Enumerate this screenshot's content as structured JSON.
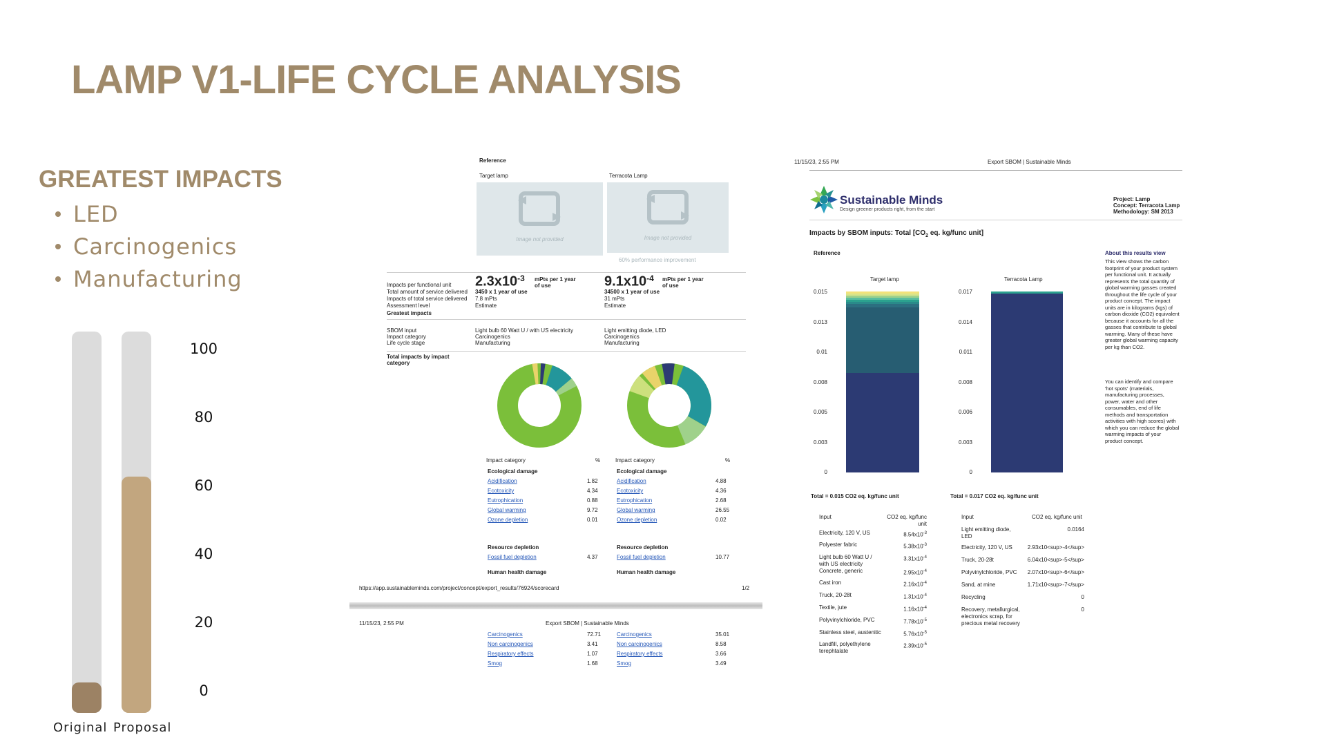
{
  "page": {
    "title": "LAMP  V1-LIFE CYCLE ANALYSIS",
    "greatest_impacts_title": "GREATEST IMPACTS",
    "impacts": [
      "LED",
      "Carcinogenics",
      "Manufacturing"
    ]
  },
  "bar_chart": {
    "type": "bar",
    "categories": [
      "Original",
      "Proposal"
    ],
    "values": [
      8,
      62
    ],
    "ylim": [
      0,
      100
    ],
    "yticks": [
      "100",
      "80",
      "60",
      "40",
      "20",
      "0"
    ],
    "colors": {
      "original": "#9c8264",
      "proposal": "#c2a67f",
      "track": "#dcdcdc"
    }
  },
  "scorecard": {
    "reference_label": "Reference",
    "col1": {
      "name": "Target lamp",
      "img_text": "Image not provided",
      "value_base": "2.3x10",
      "value_exp": "-3",
      "unit": "mPts per 1 year of use",
      "service": "3450 x 1 year of use",
      "total": "7.8 mPts",
      "level": "Estimate",
      "sbom": "Light bulb 60 Watt U / with US electricity",
      "category": "Carcinogenics",
      "stage": "Manufacturing"
    },
    "col2": {
      "name": "Terracota Lamp",
      "img_text": "Image not provided",
      "improvement": "60% performance improvement",
      "value_base": "9.1x10",
      "value_exp": "-4",
      "unit": "mPts per 1 year of use",
      "service": "34500 x 1 year of use",
      "total": "31 mPts",
      "level": "Estimate",
      "sbom": "Light emitting diode, LED",
      "category": "Carcinogenics",
      "stage": "Manufacturing"
    },
    "row_labels": {
      "per_unit": "Impacts per functional unit",
      "service": "Total amount of service delivered",
      "total": "Impacts of total service delivered",
      "level": "Assessment level",
      "greatest": "Greatest impacts",
      "sbom": "SBOM input",
      "category": "Impact category",
      "stage": "Life cycle stage",
      "by_category": "Total impacts by impact category"
    },
    "table_head": {
      "category": "Impact category",
      "pct": "%"
    },
    "groups": {
      "eco": "Ecological damage",
      "res": "Resource depletion",
      "human": "Human health damage"
    },
    "eco_rows": [
      {
        "name": "Acidification",
        "v1": "1.82",
        "v2": "4.88"
      },
      {
        "name": "Ecotoxicity",
        "v1": "4.34",
        "v2": "4.36"
      },
      {
        "name": "Eutrophication",
        "v1": "0.88",
        "v2": "2.68"
      },
      {
        "name": "Global warming",
        "v1": "9.72",
        "v2": "26.55"
      },
      {
        "name": "Ozone depletion",
        "v1": "0.01",
        "v2": "0.02"
      }
    ],
    "res_rows": [
      {
        "name": "Fossil fuel depletion",
        "v1": "4.37",
        "v2": "10.77"
      }
    ],
    "human_rows": [
      {
        "name": "Carcinogenics",
        "v1": "72.71",
        "v2": "35.01"
      },
      {
        "name": "Non carcinogenics",
        "v1": "3.41",
        "v2": "8.58"
      },
      {
        "name": "Respiratory effects",
        "v1": "1.07",
        "v2": "3.66"
      },
      {
        "name": "Smog",
        "v1": "1.68",
        "v2": "3.49"
      }
    ],
    "url": "https://app.sustainableminds.com/project/concept/export_results/76924/scorecard",
    "page_num": "1/2",
    "footer_date": "11/15/23, 2:55 PM",
    "footer_title": "Export SBOM | Sustainable Minds"
  },
  "sbom_report": {
    "date": "11/15/23, 2:55 PM",
    "header_title": "Export SBOM | Sustainable Minds",
    "brand": "Sustainable Minds",
    "tagline": "Design greener products right, from the start",
    "project": "Project: Lamp",
    "concept": "Concept: Terracota Lamp",
    "methodology": "Methodology: SM 2013",
    "chart_title": "Impacts by SBOM inputs: Total [CO",
    "chart_title_sub": "2",
    "chart_title_end": " eq. kg/func unit]",
    "reference_label": "Reference",
    "about_title": "About this results view",
    "about_p1": "This view shows the carbon footprint of your product system per functional unit. It actually represents the total quantity of global warming gasses created throughout the life cycle of your product concept. The impact units are in kilograms (kgs) of carbon dioxide (CO2) equivalent because it accounts for all the gasses that contribute to global warming. Many of these have greater global warming capacity per kg than CO2.",
    "about_p2": "You can identify and compare 'hot spots' (materials, manufacturing processes, power, water and other consumables, end of life methods and transportation activities with high scores) with which you can reduce the global warming impacts of your product concept.",
    "left_title": "Target lamp",
    "right_title": "Terracota Lamp",
    "left_ticks": [
      "0.015",
      "0.013",
      "0.01",
      "0.008",
      "0.005",
      "0.003",
      "0"
    ],
    "right_ticks": [
      "0.017",
      "0.014",
      "0.011",
      "0.008",
      "0.006",
      "0.003",
      "0"
    ],
    "left_total": "Total = 0.015 CO2 eq. kg/func unit",
    "right_total": "Total = 0.017 CO2 eq. kg/func unit",
    "table_head_input": "Input",
    "table_head_unit": "CO2 eq. kg/func unit",
    "left_rows": [
      {
        "name": "Electricity, 120 V, US",
        "val": "8.54x10",
        "exp": "-3"
      },
      {
        "name": "Polyester fabric",
        "val": "5.38x10",
        "exp": "-3"
      },
      {
        "name": "Light bulb 60 Watt U / with US electricity",
        "val": "3.31x10",
        "exp": "-4"
      },
      {
        "name": "Concrete, generic",
        "val": "2.95x10",
        "exp": "-4"
      },
      {
        "name": "Cast iron",
        "val": "2.16x10",
        "exp": "-4"
      },
      {
        "name": "Truck, 20-28t",
        "val": "1.31x10",
        "exp": "-4"
      },
      {
        "name": "Textile, jute",
        "val": "1.16x10",
        "exp": "-4"
      },
      {
        "name": "Polyvinylchloride, PVC",
        "val": "7.78x10",
        "exp": "-5"
      },
      {
        "name": "Stainless steel, austenitic",
        "val": "5.76x10",
        "exp": "-5"
      },
      {
        "name": "Landfill, polyethylene terephtalate",
        "val": "2.39x10",
        "exp": "-5"
      }
    ],
    "right_rows": [
      {
        "name": "Light emitting diode, LED",
        "val": "0.0164"
      },
      {
        "name": "Electricity, 120 V, US",
        "val": "2.93x10<sup>-4</sup>"
      },
      {
        "name": "Truck, 20-28t",
        "val": "6.04x10<sup>-5</sup>"
      },
      {
        "name": "Polyvinylchloride, PVC",
        "val": "2.07x10<sup>-6</sup>"
      },
      {
        "name": "Sand, at mine",
        "val": "1.71x10<sup>-7</sup>"
      },
      {
        "name": "Recycling",
        "val": "0"
      },
      {
        "name": "Recovery, metallurgical, electronics scrap, for precious metal recovery",
        "val": "0"
      }
    ]
  }
}
